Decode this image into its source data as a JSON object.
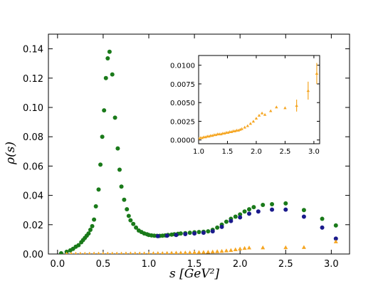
{
  "chart_data": [
    {
      "type": "scatter",
      "title": "",
      "xlabel": "s  [GeV²]",
      "ylabel": "ρ(s)",
      "xlim": [
        -0.1,
        3.2
      ],
      "ylim": [
        0,
        0.15
      ],
      "xticks": [
        "0.0",
        "0.5",
        "1.0",
        "1.5",
        "2.0",
        "2.5",
        "3.0"
      ],
      "yticks": [
        "0.00",
        "0.02",
        "0.04",
        "0.06",
        "0.08",
        "0.10",
        "0.12",
        "0.14"
      ],
      "grid": false,
      "series": [
        {
          "color": "#1a7a1a",
          "marker": "circle",
          "points": [
            [
              0.04,
              0.0005
            ],
            [
              0.1,
              0.0015
            ],
            [
              0.14,
              0.0025
            ],
            [
              0.17,
              0.0035
            ],
            [
              0.2,
              0.005
            ],
            [
              0.23,
              0.006
            ],
            [
              0.26,
              0.008
            ],
            [
              0.28,
              0.0095
            ],
            [
              0.3,
              0.011
            ],
            [
              0.32,
              0.0125
            ],
            [
              0.34,
              0.014
            ],
            [
              0.36,
              0.0165
            ],
            [
              0.38,
              0.019
            ],
            [
              0.4,
              0.0235
            ],
            [
              0.42,
              0.0325
            ],
            [
              0.45,
              0.044
            ],
            [
              0.47,
              0.061
            ],
            [
              0.49,
              0.08
            ],
            [
              0.51,
              0.098
            ],
            [
              0.53,
              0.12
            ],
            [
              0.55,
              0.1335
            ],
            [
              0.57,
              0.138
            ],
            [
              0.6,
              0.1225
            ],
            [
              0.63,
              0.093
            ],
            [
              0.66,
              0.072
            ],
            [
              0.68,
              0.0575
            ],
            [
              0.7,
              0.046
            ],
            [
              0.73,
              0.037
            ],
            [
              0.76,
              0.0305
            ],
            [
              0.78,
              0.026
            ],
            [
              0.8,
              0.023
            ],
            [
              0.83,
              0.0205
            ],
            [
              0.86,
              0.018
            ],
            [
              0.89,
              0.016
            ],
            [
              0.92,
              0.015
            ],
            [
              0.95,
              0.014
            ],
            [
              0.98,
              0.0135
            ],
            [
              1.0,
              0.013
            ],
            [
              1.03,
              0.0127
            ],
            [
              1.06,
              0.0125
            ],
            [
              1.09,
              0.0124
            ],
            [
              1.12,
              0.0124
            ],
            [
              1.15,
              0.0125
            ],
            [
              1.18,
              0.0127
            ],
            [
              1.21,
              0.013
            ],
            [
              1.25,
              0.0132
            ],
            [
              1.28,
              0.0135
            ],
            [
              1.32,
              0.0138
            ],
            [
              1.35,
              0.014
            ],
            [
              1.4,
              0.0142
            ],
            [
              1.45,
              0.0145
            ],
            [
              1.5,
              0.0148
            ],
            [
              1.55,
              0.015
            ],
            [
              1.6,
              0.0152
            ],
            [
              1.65,
              0.0155
            ],
            [
              1.7,
              0.0165
            ],
            [
              1.75,
              0.018
            ],
            [
              1.8,
              0.02
            ],
            [
              1.85,
              0.022
            ],
            [
              1.9,
              0.024
            ],
            [
              1.95,
              0.0255
            ],
            [
              2.0,
              0.027
            ],
            [
              2.05,
              0.029
            ],
            [
              2.1,
              0.0305
            ],
            [
              2.15,
              0.032
            ],
            [
              2.25,
              0.0335
            ],
            [
              2.35,
              0.034
            ],
            [
              2.5,
              0.0345
            ],
            [
              2.7,
              0.03
            ],
            [
              2.9,
              0.024
            ],
            [
              3.05,
              0.0195
            ]
          ]
        },
        {
          "color": "#1a1a8c",
          "marker": "circle",
          "points": [
            [
              1.1,
              0.0122
            ],
            [
              1.2,
              0.0125
            ],
            [
              1.3,
              0.013
            ],
            [
              1.4,
              0.0136
            ],
            [
              1.5,
              0.014
            ],
            [
              1.6,
              0.0145
            ],
            [
              1.7,
              0.0155
            ],
            [
              1.8,
              0.0185
            ],
            [
              1.9,
              0.0225
            ],
            [
              2.0,
              0.025
            ],
            [
              2.1,
              0.0275
            ],
            [
              2.2,
              0.029
            ],
            [
              2.35,
              0.0303
            ],
            [
              2.5,
              0.0303
            ],
            [
              2.7,
              0.0255
            ],
            [
              2.9,
              0.018
            ],
            [
              3.05,
              0.0105
            ]
          ]
        },
        {
          "color": "#f5a623",
          "marker": "triangle",
          "points": [
            [
              0.1,
              0.0001
            ],
            [
              0.15,
              0.0001
            ],
            [
              0.2,
              0.0001
            ],
            [
              0.25,
              0.0001
            ],
            [
              0.3,
              0.0001
            ],
            [
              0.35,
              0.0001
            ],
            [
              0.4,
              0.0002
            ],
            [
              0.45,
              0.0002
            ],
            [
              0.5,
              0.0002
            ],
            [
              0.55,
              0.0002
            ],
            [
              0.6,
              0.0002
            ],
            [
              0.65,
              0.0002
            ],
            [
              0.7,
              0.0002
            ],
            [
              0.75,
              0.0003
            ],
            [
              0.8,
              0.0003
            ],
            [
              0.85,
              0.0003
            ],
            [
              0.9,
              0.0003
            ],
            [
              0.95,
              0.0003
            ],
            [
              1.0,
              0.0003
            ],
            [
              1.05,
              0.0004
            ],
            [
              1.1,
              0.0005
            ],
            [
              1.15,
              0.0005
            ],
            [
              1.2,
              0.0006
            ],
            [
              1.25,
              0.0007
            ],
            [
              1.3,
              0.0008
            ],
            [
              1.35,
              0.0008
            ],
            [
              1.4,
              0.0009
            ],
            [
              1.45,
              0.001
            ],
            [
              1.5,
              0.0011
            ],
            [
              1.55,
              0.0012
            ],
            [
              1.6,
              0.0013
            ],
            [
              1.65,
              0.0014
            ],
            [
              1.7,
              0.0016
            ],
            [
              1.75,
              0.0018
            ],
            [
              1.8,
              0.002
            ],
            [
              1.85,
              0.0023
            ],
            [
              1.9,
              0.0026
            ],
            [
              1.95,
              0.0031
            ],
            [
              2.0,
              0.0036
            ],
            [
              2.05,
              0.004
            ],
            [
              2.1,
              0.0043
            ],
            [
              2.25,
              0.0044
            ],
            [
              2.5,
              0.0045
            ],
            [
              2.7,
              0.0046
            ],
            [
              3.05,
              0.0085
            ]
          ]
        }
      ]
    },
    {
      "type": "scatter",
      "title": "",
      "xlim": [
        1.0,
        3.1
      ],
      "ylim": [
        -0.0005,
        0.0113
      ],
      "xticks": [
        "1.0",
        "1.5",
        "2.0",
        "2.5",
        "3.0"
      ],
      "yticks": [
        "0.0000",
        "0.0025",
        "0.0050",
        "0.0075",
        "0.0100"
      ],
      "grid": false,
      "series": [
        {
          "color": "#f5a623",
          "marker": "triangle",
          "points": [
            [
              1.0,
              0.0002
            ],
            [
              1.03,
              0.0003
            ],
            [
              1.06,
              0.0003
            ],
            [
              1.09,
              0.0004
            ],
            [
              1.12,
              0.0004
            ],
            [
              1.15,
              0.0005
            ],
            [
              1.18,
              0.0005
            ],
            [
              1.21,
              0.0006
            ],
            [
              1.24,
              0.0006
            ],
            [
              1.27,
              0.0007
            ],
            [
              1.3,
              0.0007
            ],
            [
              1.33,
              0.0008
            ],
            [
              1.36,
              0.0008
            ],
            [
              1.39,
              0.0008
            ],
            [
              1.42,
              0.0009
            ],
            [
              1.45,
              0.0009
            ],
            [
              1.48,
              0.001
            ],
            [
              1.51,
              0.001
            ],
            [
              1.54,
              0.0011
            ],
            [
              1.57,
              0.0011
            ],
            [
              1.6,
              0.0012
            ],
            [
              1.63,
              0.0012
            ],
            [
              1.66,
              0.0013
            ],
            [
              1.69,
              0.0013
            ],
            [
              1.72,
              0.0014
            ],
            [
              1.75,
              0.0015
            ],
            [
              1.8,
              0.0017
            ],
            [
              1.85,
              0.0019
            ],
            [
              1.9,
              0.0022
            ],
            [
              1.95,
              0.0025
            ],
            [
              2.0,
              0.0029
            ],
            [
              2.05,
              0.0033
            ],
            [
              2.1,
              0.0036
            ],
            [
              2.15,
              0.0034
            ],
            [
              2.25,
              0.0039
            ],
            [
              2.35,
              0.0044
            ],
            [
              2.5,
              0.0043
            ],
            [
              2.7,
              0.0046
            ],
            [
              2.9,
              0.0066
            ],
            [
              3.05,
              0.0089
            ]
          ],
          "errors": [
            0,
            0,
            0,
            0,
            0,
            0,
            0,
            0,
            0,
            0,
            0,
            0,
            0,
            0,
            0,
            0,
            0,
            0,
            0,
            0,
            0,
            0,
            0,
            0,
            0,
            0,
            0,
            0,
            0,
            0,
            0,
            0,
            0,
            0,
            0,
            0,
            0,
            0.0008,
            0.0012,
            0.0014
          ]
        }
      ]
    }
  ]
}
